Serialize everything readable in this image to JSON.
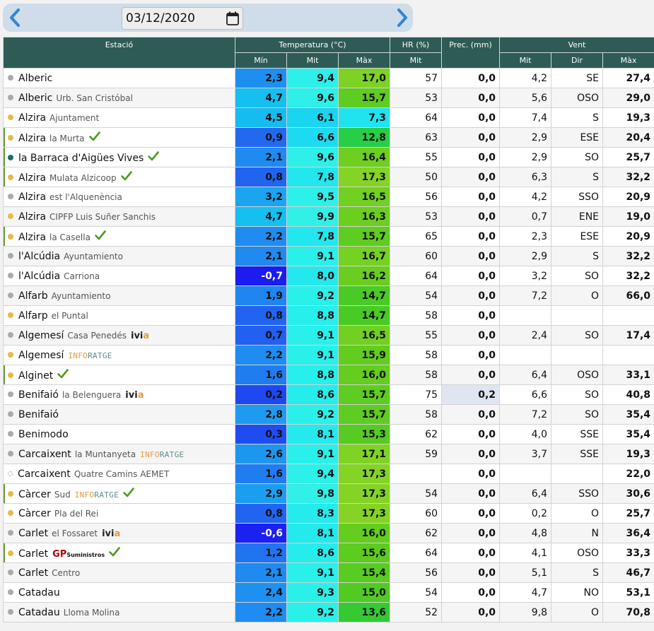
{
  "date": "03/12/2020",
  "icons": {
    "prev": "chevron-left-icon",
    "next": "chevron-right-icon",
    "calendar": "calendar-icon",
    "verified": "check-icon"
  },
  "headers": {
    "station": "Estació",
    "temperature": "Temperatura (°C)",
    "humidity": "HR (%)",
    "precipitation": "Prec. (mm)",
    "wind": "Vent",
    "min": "Mín",
    "mit": "Mit",
    "max": "Màx",
    "dir": "Dir"
  },
  "colors": {
    "header": "#2e5b55",
    "dot_yellow": "#e8b84a",
    "dot_gray": "#aaaaaa",
    "dot_teal": "#1e6a6a",
    "check": "#4f9a1e"
  },
  "rows": [
    {
      "name": "Alberic",
      "sub": "",
      "badge": "",
      "check": false,
      "dot": "gray",
      "min": "2,3",
      "mit": "9,4",
      "max": "17,0",
      "hr": "57",
      "prec": "0,0",
      "vmit": "4,2",
      "dir": "SE",
      "vmax": "27,4"
    },
    {
      "name": "Alberic",
      "sub": "Urb. San Cristóbal",
      "badge": "",
      "check": false,
      "dot": "gray",
      "min": "4,7",
      "mit": "9,6",
      "max": "15,7",
      "hr": "53",
      "prec": "0,0",
      "vmit": "5,6",
      "dir": "OSO",
      "vmax": "29,0"
    },
    {
      "name": "Alzira",
      "sub": "Ajuntament",
      "badge": "",
      "check": false,
      "dot": "yellow",
      "min": "4,5",
      "mit": "6,1",
      "max": "7,3",
      "hr": "64",
      "prec": "0,0",
      "vmit": "7,4",
      "dir": "S",
      "vmax": "19,3"
    },
    {
      "name": "Alzira",
      "sub": "la Murta",
      "badge": "",
      "check": true,
      "dot": "yellow",
      "min": "0,9",
      "mit": "6,6",
      "max": "12,8",
      "hr": "63",
      "prec": "0,0",
      "vmit": "2,9",
      "dir": "ESE",
      "vmax": "20,4"
    },
    {
      "name": "la Barraca d'Aigües Vives",
      "sub": "",
      "badge": "",
      "check": true,
      "dot": "teal",
      "min": "2,1",
      "mit": "9,6",
      "max": "16,4",
      "hr": "55",
      "prec": "0,0",
      "vmit": "2,9",
      "dir": "SO",
      "vmax": "25,7"
    },
    {
      "name": "Alzira",
      "sub": "Mulata Alzicoop",
      "badge": "",
      "check": true,
      "dot": "yellow",
      "min": "0,8",
      "mit": "7,8",
      "max": "17,3",
      "hr": "50",
      "prec": "0,0",
      "vmit": "6,3",
      "dir": "S",
      "vmax": "32,2"
    },
    {
      "name": "Alzira",
      "sub": "est l'Alquenència",
      "badge": "",
      "check": false,
      "dot": "gray",
      "min": "3,2",
      "mit": "9,5",
      "max": "16,5",
      "hr": "56",
      "prec": "0,0",
      "vmit": "4,2",
      "dir": "SSO",
      "vmax": "20,9"
    },
    {
      "name": "Alzira",
      "sub": "CIPFP Luis Suñer Sanchis",
      "badge": "",
      "check": false,
      "dot": "yellow",
      "min": "4,7",
      "mit": "9,9",
      "max": "16,3",
      "hr": "53",
      "prec": "0,0",
      "vmit": "0,7",
      "dir": "ENE",
      "vmax": "19,0"
    },
    {
      "name": "Alzira",
      "sub": "la Casella",
      "badge": "",
      "check": true,
      "dot": "yellow",
      "min": "2,2",
      "mit": "7,8",
      "max": "15,7",
      "hr": "65",
      "prec": "0,0",
      "vmit": "2,3",
      "dir": "ESE",
      "vmax": "20,9"
    },
    {
      "name": "l'Alcúdia",
      "sub": "Ayuntamiento",
      "badge": "",
      "check": false,
      "dot": "gray",
      "min": "2,1",
      "mit": "9,1",
      "max": "16,7",
      "hr": "60",
      "prec": "0,0",
      "vmit": "2,9",
      "dir": "S",
      "vmax": "32,2"
    },
    {
      "name": "l'Alcúdia",
      "sub": "Carriona",
      "badge": "",
      "check": false,
      "dot": "gray",
      "min": "-0,7",
      "mit": "8,0",
      "max": "16,2",
      "hr": "64",
      "prec": "0,0",
      "vmit": "3,2",
      "dir": "SO",
      "vmax": "32,2"
    },
    {
      "name": "Alfarb",
      "sub": "Ayuntamiento",
      "badge": "",
      "check": false,
      "dot": "gray",
      "min": "1,9",
      "mit": "9,2",
      "max": "14,7",
      "hr": "54",
      "prec": "0,0",
      "vmit": "7,2",
      "dir": "O",
      "vmax": "66,0"
    },
    {
      "name": "Alfarp",
      "sub": "el Puntal",
      "badge": "",
      "check": false,
      "dot": "yellow",
      "min": "0,8",
      "mit": "8,8",
      "max": "14,7",
      "hr": "58",
      "prec": "0,0",
      "vmit": "",
      "dir": "",
      "vmax": ""
    },
    {
      "name": "Algemesí",
      "sub": "Casa Penedés",
      "badge": "ivia",
      "check": false,
      "dot": "gray",
      "min": "0,7",
      "mit": "9,1",
      "max": "16,5",
      "hr": "55",
      "prec": "0,0",
      "vmit": "2,4",
      "dir": "SO",
      "vmax": "17,4"
    },
    {
      "name": "Algemesí",
      "sub": "",
      "badge": "infor",
      "check": false,
      "dot": "yellow",
      "min": "2,2",
      "mit": "9,1",
      "max": "15,9",
      "hr": "58",
      "prec": "0,0",
      "vmit": "",
      "dir": "",
      "vmax": ""
    },
    {
      "name": "Alginet",
      "sub": "",
      "badge": "",
      "check": true,
      "dot": "yellow",
      "min": "1,6",
      "mit": "8,8",
      "max": "16,0",
      "hr": "58",
      "prec": "0,0",
      "vmit": "6,4",
      "dir": "OSO",
      "vmax": "33,1"
    },
    {
      "name": "Benifaió",
      "sub": "la Belenguera",
      "badge": "ivia",
      "check": false,
      "dot": "gray",
      "min": "0,2",
      "mit": "8,6",
      "max": "15,7",
      "hr": "75",
      "prec": "0,2",
      "vmit": "6,6",
      "dir": "SO",
      "vmax": "40,8"
    },
    {
      "name": "Benifaió",
      "sub": "",
      "badge": "",
      "check": false,
      "dot": "gray",
      "min": "2,8",
      "mit": "9,2",
      "max": "15,7",
      "hr": "58",
      "prec": "0,0",
      "vmit": "7,2",
      "dir": "SO",
      "vmax": "35,4"
    },
    {
      "name": "Benimodo",
      "sub": "",
      "badge": "",
      "check": false,
      "dot": "gray",
      "min": "0,3",
      "mit": "8,1",
      "max": "15,3",
      "hr": "62",
      "prec": "0,0",
      "vmit": "4,0",
      "dir": "SSE",
      "vmax": "35,4"
    },
    {
      "name": "Carcaixent",
      "sub": "la Muntanyeta",
      "badge": "infor",
      "check": false,
      "dot": "gray",
      "min": "2,6",
      "mit": "9,1",
      "max": "17,1",
      "hr": "59",
      "prec": "0,0",
      "vmit": "3,7",
      "dir": "SSE",
      "vmax": "19,3"
    },
    {
      "name": "Carcaixent",
      "sub": "Quatre Camins AEMET",
      "badge": "",
      "check": false,
      "dot": "ring",
      "min": "1,6",
      "mit": "9,4",
      "max": "17,3",
      "hr": "",
      "prec": "0,0",
      "vmit": "",
      "dir": "",
      "vmax": "22,0"
    },
    {
      "name": "Càrcer",
      "sub": "Sud",
      "badge": "infor",
      "check": true,
      "dot": "yellow",
      "min": "2,9",
      "mit": "9,8",
      "max": "17,3",
      "hr": "54",
      "prec": "0,0",
      "vmit": "6,4",
      "dir": "SSO",
      "vmax": "30,6"
    },
    {
      "name": "Càrcer",
      "sub": "Pla del Rei",
      "badge": "",
      "check": false,
      "dot": "yellow",
      "min": "0,8",
      "mit": "8,3",
      "max": "17,3",
      "hr": "60",
      "prec": "0,0",
      "vmit": "0,2",
      "dir": "O",
      "vmax": "25,7"
    },
    {
      "name": "Carlet",
      "sub": "el Fossaret",
      "badge": "ivia",
      "check": false,
      "dot": "gray",
      "min": "-0,6",
      "mit": "8,1",
      "max": "16,0",
      "hr": "62",
      "prec": "0,0",
      "vmit": "4,8",
      "dir": "N",
      "vmax": "36,4"
    },
    {
      "name": "Carlet",
      "sub": "",
      "badge": "gp",
      "check": true,
      "dot": "yellow",
      "min": "1,2",
      "mit": "8,6",
      "max": "15,6",
      "hr": "64",
      "prec": "0,0",
      "vmit": "4,1",
      "dir": "OSO",
      "vmax": "33,3"
    },
    {
      "name": "Carlet",
      "sub": "Centro",
      "badge": "",
      "check": false,
      "dot": "gray",
      "min": "2,1",
      "mit": "9,1",
      "max": "15,4",
      "hr": "56",
      "prec": "0,0",
      "vmit": "5,1",
      "dir": "S",
      "vmax": "46,7"
    },
    {
      "name": "Catadau",
      "sub": "",
      "badge": "",
      "check": false,
      "dot": "gray",
      "min": "2,4",
      "mit": "9,3",
      "max": "15,0",
      "hr": "54",
      "prec": "0,0",
      "vmit": "4,7",
      "dir": "NO",
      "vmax": "53,1"
    },
    {
      "name": "Catadau",
      "sub": "Lloma Molina",
      "badge": "",
      "check": false,
      "dot": "gray",
      "min": "2,2",
      "mit": "9,2",
      "max": "13,6",
      "hr": "52",
      "prec": "0,0",
      "vmit": "9,8",
      "dir": "O",
      "vmax": "70,8"
    }
  ],
  "badges": {
    "ivia": {
      "a": "ivi",
      "b": "a"
    },
    "infor": {
      "a": "INFO",
      "b": "RATGE"
    },
    "gp": {
      "a": "GP",
      "b": "Suministros"
    }
  }
}
